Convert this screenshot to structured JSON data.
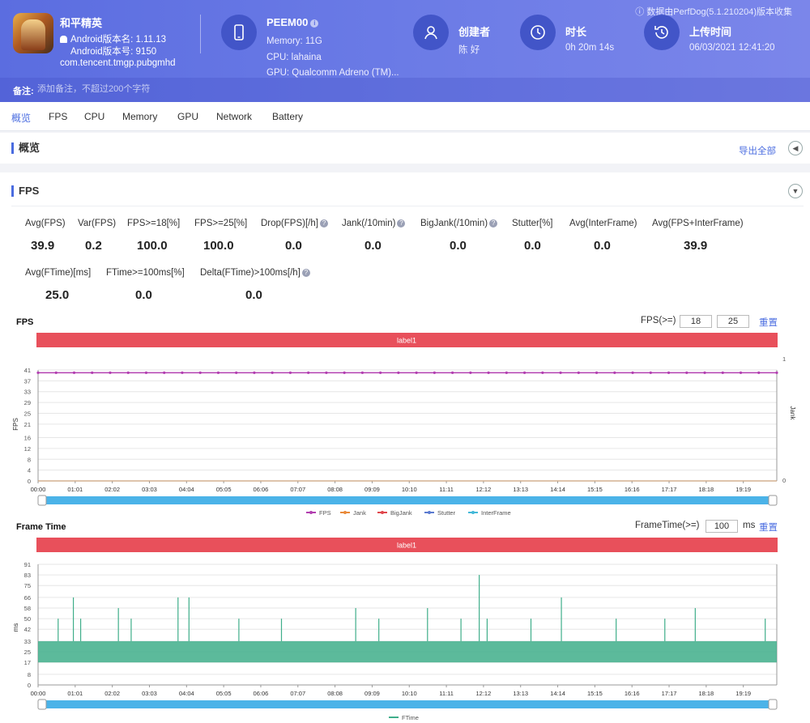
{
  "header": {
    "source_note": "数据由PerfDog(5.1.210204)版本收集",
    "app": {
      "name": "和平精英",
      "version_name": "Android版本名: 1.11.13",
      "version_code": "Android版本号: 9150",
      "package": "com.tencent.tmgp.pubgmhd"
    },
    "device": {
      "model": "PEEM00",
      "memory": "Memory: 11G",
      "cpu": "CPU: lahaina",
      "gpu": "GPU: Qualcomm Adreno (TM)..."
    },
    "creator": {
      "label": "创建者",
      "value": "陈 好"
    },
    "duration": {
      "label": "时长",
      "value": "0h 20m 14s"
    },
    "upload": {
      "label": "上传时间",
      "value": "06/03/2021 12:41:20"
    },
    "note": {
      "label": "备注:",
      "placeholder": "添加备注，不超过200个字符"
    }
  },
  "tabs": [
    "概览",
    "FPS",
    "CPU",
    "Memory",
    "GPU",
    "Network",
    "Battery"
  ],
  "overview": {
    "title": "概览",
    "export_label": "导出全部"
  },
  "fps_section": {
    "title": "FPS",
    "metrics_row1": [
      {
        "label": "Avg(FPS)",
        "value": "39.9"
      },
      {
        "label": "Var(FPS)",
        "value": "0.2"
      },
      {
        "label": "FPS>=18[%]",
        "value": "100.0"
      },
      {
        "label": "FPS>=25[%]",
        "value": "100.0"
      },
      {
        "label": "Drop(FPS)[/h]",
        "value": "0.0"
      },
      {
        "label": "Jank(/10min)",
        "value": "0.0"
      },
      {
        "label": "BigJank(/10min)",
        "value": "0.0"
      },
      {
        "label": "Stutter[%]",
        "value": "0.0"
      },
      {
        "label": "Avg(InterFrame)",
        "value": "0.0"
      },
      {
        "label": "Avg(FPS+InterFrame)",
        "value": "39.9"
      }
    ],
    "metrics_row2": [
      {
        "label": "Avg(FTime)[ms]",
        "value": "25.0"
      },
      {
        "label": "FTime>=100ms[%]",
        "value": "0.0"
      },
      {
        "label": "Delta(FTime)>100ms[/h]",
        "value": "0.0"
      }
    ]
  },
  "fps_chart": {
    "title": "FPS",
    "ctrl_label": "FPS(>=)",
    "threshold_1": "18",
    "threshold_2": "25",
    "reset_label": "重置",
    "band_label": "label1",
    "ylabel": "FPS",
    "y2label": "Jank",
    "yticks": [
      "0",
      "4",
      "8",
      "12",
      "16",
      "21",
      "25",
      "29",
      "33",
      "37",
      "41"
    ],
    "y2ticks": [
      "0",
      "1"
    ],
    "legend": [
      {
        "name": "FPS",
        "color": "#b23fb0"
      },
      {
        "name": "Jank",
        "color": "#e98a3a"
      },
      {
        "name": "BigJank",
        "color": "#e0474c"
      },
      {
        "name": "Stutter",
        "color": "#5b7bd0"
      },
      {
        "name": "InterFrame",
        "color": "#43b8d8"
      }
    ]
  },
  "ftime_chart": {
    "title": "Frame Time",
    "ctrl_label": "FrameTime(>=)",
    "threshold": "100",
    "unit": "ms",
    "reset_label": "重置",
    "band_label": "label1",
    "ylabel": "ms",
    "yticks": [
      "0",
      "8",
      "17",
      "25",
      "33",
      "42",
      "50",
      "58",
      "66",
      "75",
      "83",
      "91"
    ],
    "legend": [
      {
        "name": "FTime",
        "color": "#3fae8a"
      }
    ]
  },
  "xticks": [
    "00:00",
    "01:01",
    "02:02",
    "03:03",
    "04:04",
    "05:05",
    "06:06",
    "07:07",
    "08:08",
    "09:09",
    "10:10",
    "11:11",
    "12:12",
    "13:13",
    "14:14",
    "15:15",
    "16:16",
    "17:17",
    "18:18",
    "19:19"
  ],
  "chart_data": [
    {
      "type": "line",
      "title": "FPS",
      "xlabel": "",
      "ylabel": "FPS",
      "ylim": [
        0,
        41
      ],
      "x_range": [
        "00:00",
        "20:14"
      ],
      "series": [
        {
          "name": "FPS",
          "values": [
            40,
            40,
            40,
            40,
            40,
            40,
            40,
            40,
            40,
            40,
            40,
            40,
            40,
            40,
            40,
            40,
            40,
            40,
            40,
            40,
            40,
            40,
            40,
            40,
            40,
            40,
            40,
            40,
            40,
            40,
            40,
            40,
            40,
            40,
            40,
            40,
            40,
            40,
            40,
            40,
            40,
            40
          ]
        },
        {
          "name": "Jank",
          "values": [
            0,
            0,
            0,
            0,
            0,
            0,
            0,
            0,
            0,
            0,
            0,
            0,
            0,
            0,
            0,
            0,
            0,
            0,
            0,
            0,
            0,
            0,
            0,
            0,
            0,
            0,
            0,
            0,
            0,
            0,
            0,
            0,
            0,
            0,
            0,
            0,
            0,
            0,
            0,
            0,
            0,
            0
          ]
        }
      ]
    },
    {
      "type": "line",
      "title": "Frame Time",
      "xlabel": "",
      "ylabel": "ms",
      "ylim": [
        0,
        91
      ],
      "x_range": [
        "00:00",
        "20:14"
      ],
      "series": [
        {
          "name": "FTime",
          "baseline_low": 17,
          "baseline_high": 33,
          "spikes": [
            {
              "t": "00:33",
              "v": 50
            },
            {
              "t": "00:58",
              "v": 66
            },
            {
              "t": "01:10",
              "v": 50
            },
            {
              "t": "02:12",
              "v": 58
            },
            {
              "t": "02:33",
              "v": 50
            },
            {
              "t": "03:50",
              "v": 66
            },
            {
              "t": "04:08",
              "v": 66
            },
            {
              "t": "05:30",
              "v": 50
            },
            {
              "t": "06:40",
              "v": 50
            },
            {
              "t": "08:42",
              "v": 58
            },
            {
              "t": "09:20",
              "v": 50
            },
            {
              "t": "10:40",
              "v": 58
            },
            {
              "t": "11:35",
              "v": 50
            },
            {
              "t": "12:05",
              "v": 83
            },
            {
              "t": "12:18",
              "v": 50
            },
            {
              "t": "13:30",
              "v": 50
            },
            {
              "t": "14:20",
              "v": 66
            },
            {
              "t": "15:50",
              "v": 50
            },
            {
              "t": "17:10",
              "v": 50
            },
            {
              "t": "18:00",
              "v": 58
            },
            {
              "t": "19:55",
              "v": 50
            }
          ]
        }
      ]
    }
  ]
}
